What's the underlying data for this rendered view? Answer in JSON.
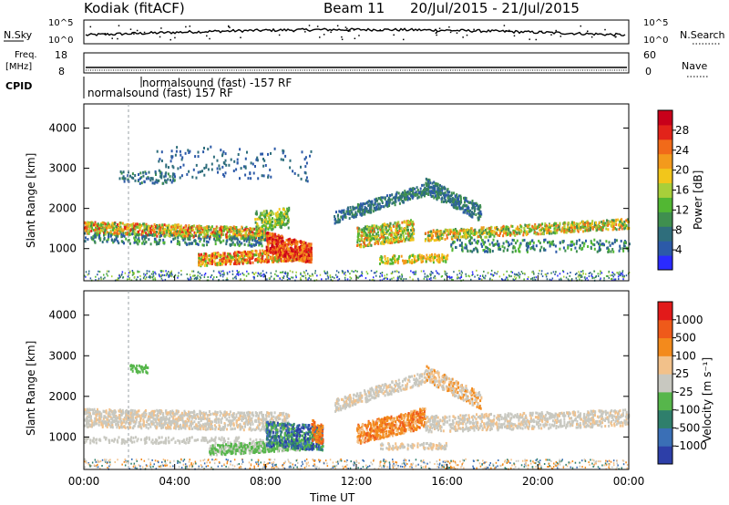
{
  "header": {
    "radar": "Kodiak (fitACF)",
    "beam": "Beam 11",
    "date_range": "20/Jul/2015 - 21/Jul/2015"
  },
  "top_panels": {
    "nsky_label": "N.Sky",
    "nsearch_label": "N.Search",
    "nsky_ticks": [
      "10^5",
      "10^0"
    ],
    "freq_label": "Freq.",
    "freq_unit": "[MHz]",
    "freq_ticks": [
      "18",
      "8"
    ],
    "nave_label": "Nave",
    "nave_ticks": [
      "60",
      "0"
    ],
    "cpid_label": "CPID",
    "cpid_entries": [
      "normalsound (fast) -157 RF",
      "normalsound (fast) 157 RF"
    ]
  },
  "chart_data": [
    {
      "type": "heatmap",
      "name": "power",
      "ylabel": "Slant Range [km]",
      "ylim": [
        200,
        4600
      ],
      "yticks": [
        "4000",
        "3000",
        "2000",
        "1000"
      ],
      "colorbar_label": "Power [dB]",
      "colorbar_ticks": [
        "28",
        "24",
        "20",
        "16",
        "12",
        "8",
        "4"
      ],
      "colorbar_colors": [
        "#2a2aff",
        "#2c5aa8",
        "#2f6e7c",
        "#3f8f4f",
        "#52b733",
        "#a8cf3a",
        "#f2c61b",
        "#f39a1c",
        "#f16a19",
        "#e2231a",
        "#c8001a"
      ]
    },
    {
      "type": "heatmap",
      "name": "velocity",
      "ylabel": "Slant Range [km]",
      "ylim": [
        200,
        4600
      ],
      "yticks": [
        "4000",
        "3000",
        "2000",
        "1000"
      ],
      "colorbar_label": "Velocity [m s⁻¹]",
      "colorbar_ticks": [
        "1000",
        "500",
        "100",
        "25",
        "-25",
        "-100",
        "-500",
        "-1000"
      ],
      "colorbar_colors": [
        "#2d3fa8",
        "#3a6fb6",
        "#2f7f6c",
        "#56b64b",
        "#c8c8c0",
        "#f2c18a",
        "#f38a1c",
        "#ef5a1a",
        "#e21a1a"
      ],
      "xlabel": "Time UT",
      "xticks": [
        "00:00",
        "04:00",
        "08:00",
        "12:00",
        "16:00",
        "20:00",
        "00:00"
      ]
    }
  ]
}
